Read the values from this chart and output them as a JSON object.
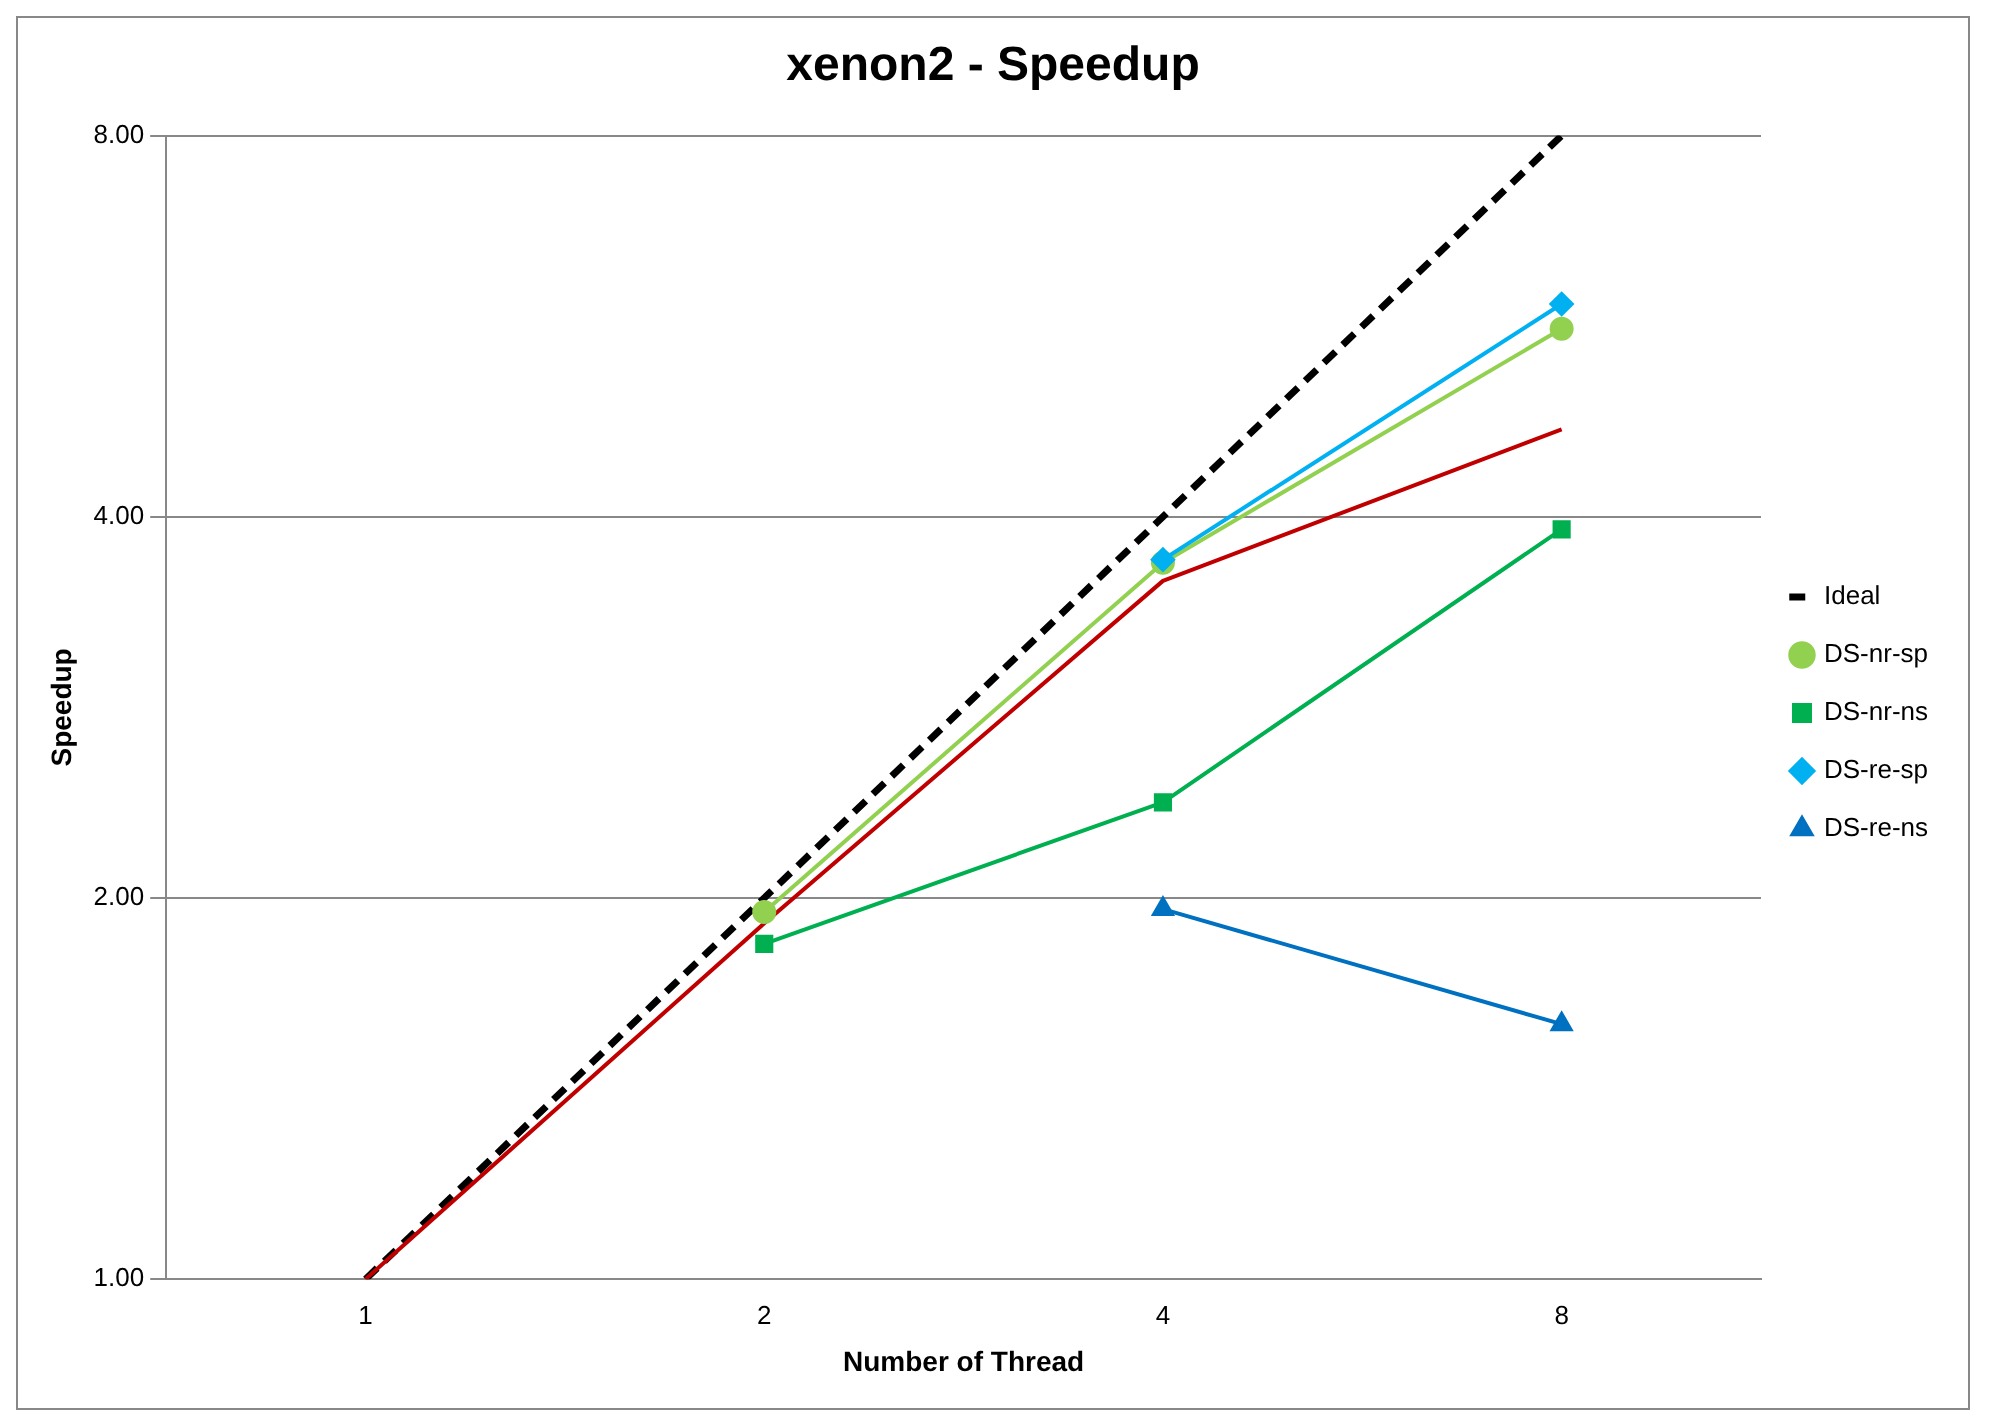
{
  "chart_data": {
    "type": "line",
    "title": "xenon2 - Speedup",
    "xlabel": "Number of Thread",
    "ylabel": "Speedup",
    "categories": [
      "1",
      "2",
      "4",
      "8"
    ],
    "series": [
      {
        "name": "Ideal",
        "color": "#000000",
        "values": [
          1,
          2,
          4,
          8
        ],
        "marker": "none",
        "line_style": "dashed"
      },
      {
        "color": "#c00000",
        "values": [
          1,
          1.91,
          3.56,
          4.69
        ],
        "marker": "none",
        "line_style": "solid"
      },
      {
        "name": "DS-nr-sp",
        "color": "#92d050",
        "values": [
          null,
          1.95,
          3.68,
          5.63
        ],
        "marker": "circle",
        "line_style": "solid"
      },
      {
        "name": "DS-nr-ns",
        "color": "#00b050",
        "values": [
          null,
          1.84,
          2.38,
          3.91
        ],
        "marker": "square",
        "line_style": "solid"
      },
      {
        "name": "DS-re-sp",
        "color": "#00b0f0",
        "values": [
          null,
          null,
          3.7,
          5.89
        ],
        "marker": "diamond",
        "line_style": "solid"
      },
      {
        "name": "DS-re-ns",
        "color": "#0070c0",
        "values": [
          null,
          null,
          1.96,
          1.59
        ],
        "marker": "triangle",
        "line_style": "solid"
      }
    ],
    "log": "y",
    "ylim": [
      1,
      8
    ],
    "yticks": [
      {
        "value": 1,
        "label": "1.00"
      },
      {
        "value": 2,
        "label": "2.00"
      },
      {
        "value": 4,
        "label": "4.00"
      },
      {
        "value": 8,
        "label": "8.00"
      }
    ],
    "grid": "y",
    "legend": "right"
  }
}
